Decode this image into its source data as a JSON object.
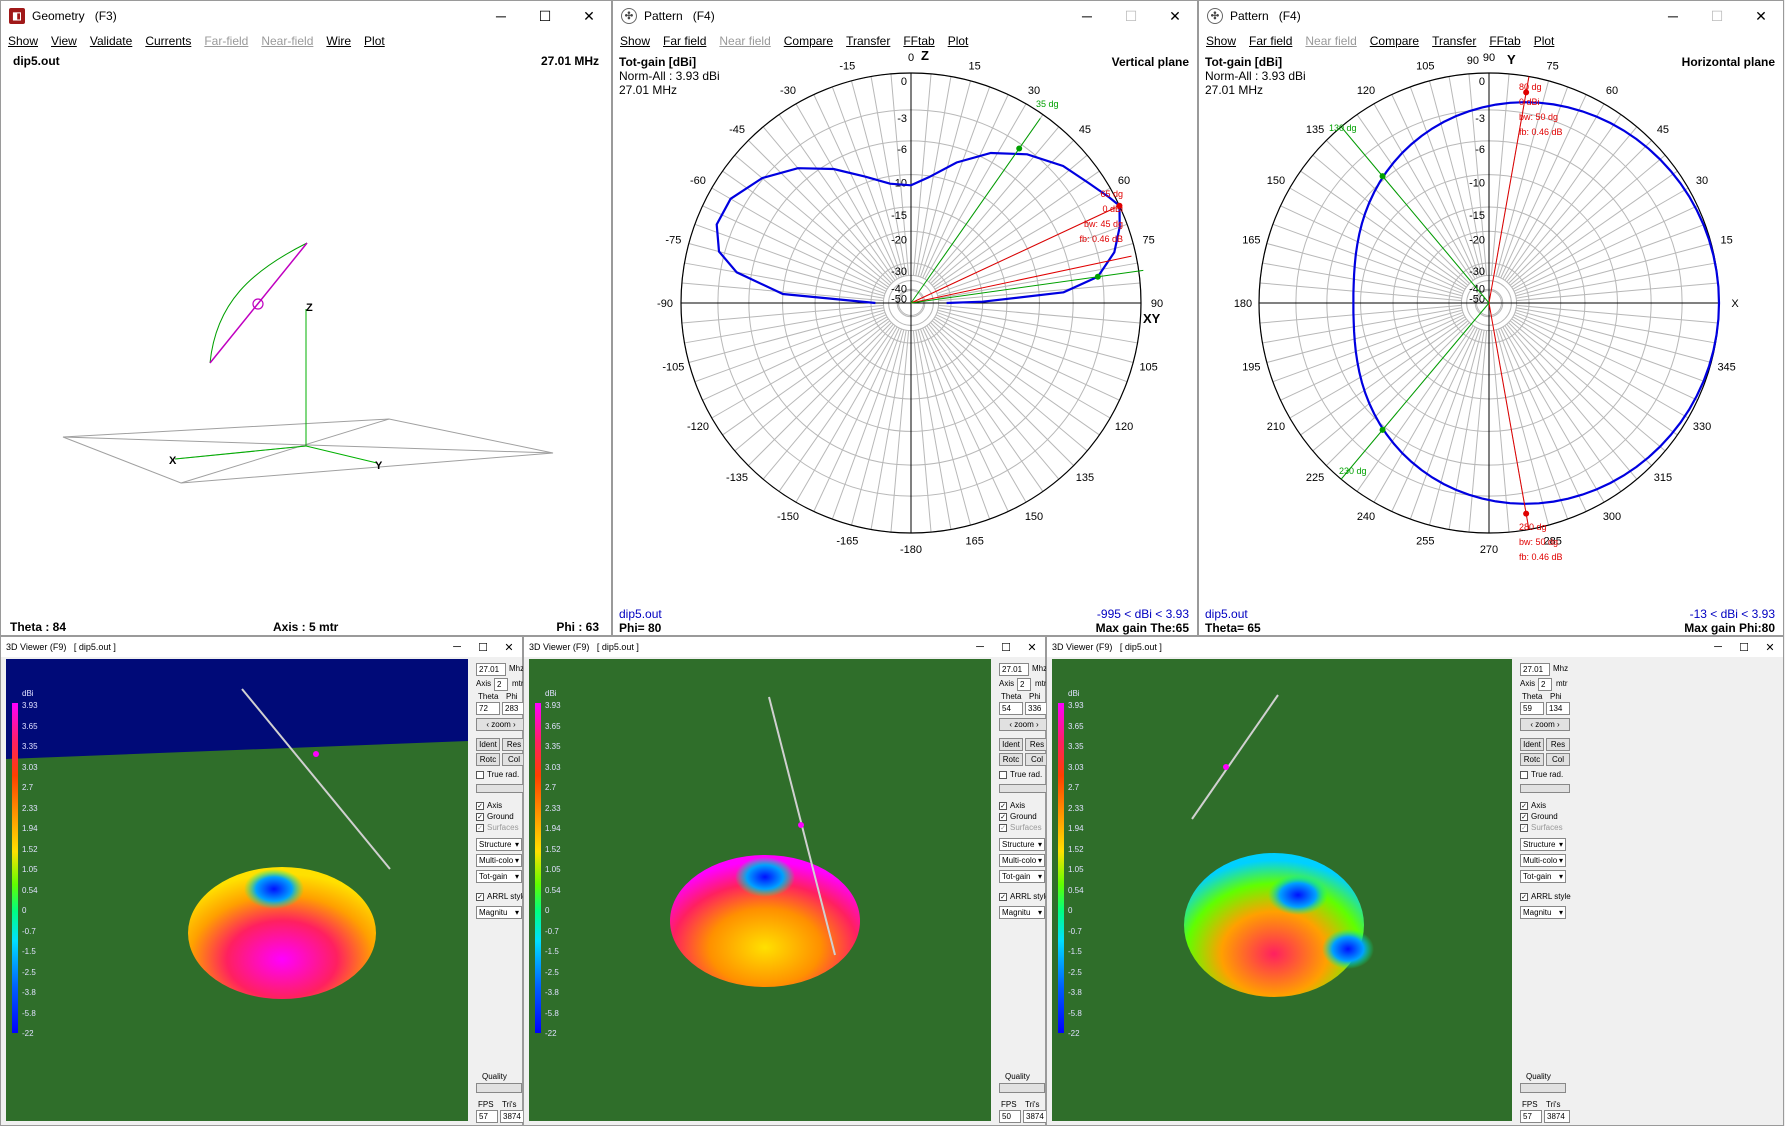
{
  "geometry": {
    "title": "Geometry",
    "shortcut": "(F3)",
    "menu": [
      "Show",
      "View",
      "Validate",
      "Currents",
      "Far-field",
      "Near-field",
      "Wire",
      "Plot"
    ],
    "menu_disabled": [
      false,
      false,
      false,
      false,
      true,
      true,
      false,
      false
    ],
    "file": "dip5.out",
    "freq": "27.01 MHz",
    "theta": "Theta : 84",
    "axis": "Axis : 5 mtr",
    "phi": "Phi : 63",
    "axis_labels": {
      "z": "Z",
      "x": "X",
      "y": "Y"
    }
  },
  "pattern_vertical": {
    "title": "Pattern",
    "shortcut": "(F4)",
    "menu": [
      "Show",
      "Far field",
      "Near field",
      "Compare",
      "Transfer",
      "FFtab",
      "Plot"
    ],
    "menu_disabled": [
      false,
      false,
      true,
      false,
      false,
      false,
      false
    ],
    "gain_label": "Tot-gain [dBi]",
    "norm": "Norm-All : 3.93 dBi",
    "freq": "27.01 MHz",
    "plane": "Vertical plane",
    "file": "dip5.out",
    "angle": "Phi= 80",
    "range": "-995 < dBi < 3.93",
    "max_gain": "Max gain The:65",
    "axis_top": "Z",
    "axis_right": "XY",
    "marker_green": "35 dg",
    "marker_red": [
      "65 dg",
      "0 dBi",
      "bw: 45 dg",
      "fb: 0.46 dB"
    ],
    "ring_labels": [
      "0",
      "-3",
      "-6",
      "-10",
      "-15",
      "-20",
      "-30",
      "-40",
      "-50"
    ],
    "angle_labels": [
      "0",
      "15",
      "30",
      "45",
      "60",
      "75",
      "90",
      "105",
      "120",
      "135",
      "150",
      "165",
      "-180",
      "-165",
      "-150",
      "-135",
      "-120",
      "-105",
      "-90",
      "-75",
      "-60",
      "-45",
      "-30",
      "-15"
    ]
  },
  "pattern_horizontal": {
    "title": "Pattern",
    "shortcut": "(F4)",
    "menu": [
      "Show",
      "Far field",
      "Near field",
      "Compare",
      "Transfer",
      "FFtab",
      "Plot"
    ],
    "menu_disabled": [
      false,
      false,
      true,
      false,
      false,
      false,
      false
    ],
    "gain_label": "Tot-gain [dBi]",
    "norm": "Norm-All : 3.93 dBi",
    "freq": "27.01 MHz",
    "plane": "Horizontal plane",
    "file": "dip5.out",
    "angle": "Theta= 65",
    "range": "-13 < dBi < 3.93",
    "max_gain": "Max gain Phi:80",
    "axis_top": "Y",
    "axis_top_angle": "90",
    "axis_right": "X",
    "marker_green_a": "130 dg",
    "marker_green_b": "230 dg",
    "marker_red": [
      "80 dg",
      "0 dBi",
      "bw: 50 dg",
      "fb: 0.46 dB"
    ],
    "marker_red_b": [
      "280 dg",
      "bw: 50 dg",
      "fb: 0.46 dB"
    ],
    "ring_labels": [
      "0",
      "-3",
      "-6",
      "-10",
      "-15",
      "-20",
      "-30",
      "-40",
      "-50"
    ],
    "angle_labels": [
      "90",
      "75",
      "60",
      "45",
      "30",
      "15",
      "X",
      "345",
      "330",
      "315",
      "300",
      "285",
      "270",
      "255",
      "240",
      "225",
      "210",
      "195",
      "180",
      "165",
      "150",
      "135",
      "120",
      "105"
    ]
  },
  "viewers": [
    {
      "title": "3D Viewer (F9)",
      "file": "[ dip5.out ]",
      "freq": "27.01",
      "freq_unit": "Mhz",
      "axis": "2",
      "axis_unit": "mtr",
      "theta": "72",
      "phi": "283",
      "fps": "57",
      "tris": "3874"
    },
    {
      "title": "3D Viewer (F9)",
      "file": "[ dip5.out ]",
      "freq": "27.01",
      "freq_unit": "Mhz",
      "axis": "2",
      "axis_unit": "mtr",
      "theta": "54",
      "phi": "336",
      "fps": "50",
      "tris": "3874"
    },
    {
      "title": "3D Viewer (F9)",
      "file": "[ dip5.out ]",
      "freq": "27.01",
      "freq_unit": "Mhz",
      "axis": "2",
      "axis_unit": "mtr",
      "theta": "59",
      "phi": "134",
      "fps": "57",
      "tris": "3874"
    }
  ],
  "viewer_panel": {
    "axis_label": "Axis",
    "theta_label": "Theta",
    "phi_label": "Phi",
    "zoom": "zoom",
    "ident": "Ident",
    "res": "Res",
    "rotc": "Rotc",
    "col": "Col",
    "true_rad": "True rad.",
    "axis_chk": "Axis",
    "ground_chk": "Ground",
    "surfaces_chk": "Surfaces",
    "structure": "Structure",
    "multicolor": "Multi-colo",
    "totgain": "Tot-gain",
    "arrl": "ARRL style",
    "magnitude": "Magnitu",
    "quality": "Quality",
    "fps_label": "FPS",
    "tris_label": "Tri's"
  },
  "colorbar": {
    "unit": "dBi",
    "labels": [
      "3.93",
      "3.65",
      "3.35",
      "3.03",
      "2.7",
      "2.33",
      "1.94",
      "1.52",
      "1.05",
      "0.54",
      "0",
      "-0.7",
      "-1.5",
      "-2.5",
      "-3.8",
      "-5.8",
      "-22"
    ]
  },
  "colors": {
    "pattern_line": "#0000e0",
    "marker_red": "#e00000",
    "marker_green": "#00a000",
    "grid": "#b8b8b8",
    "sky": "#000a78",
    "grass": "#2f6e2a"
  }
}
